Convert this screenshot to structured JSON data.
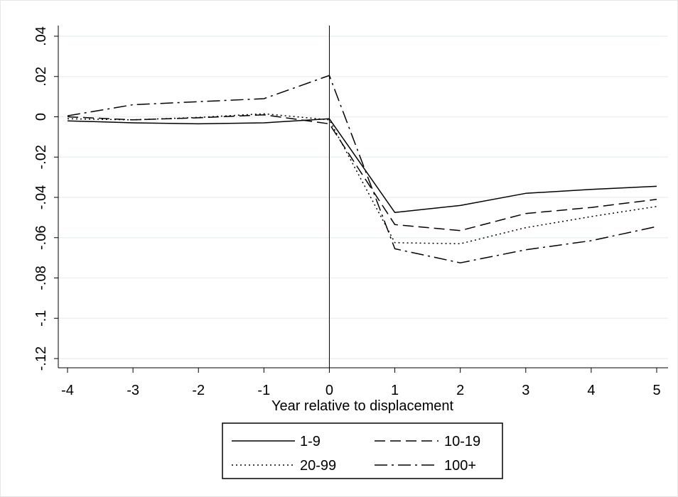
{
  "chart_data": {
    "type": "line",
    "title": "",
    "xlabel": "Year relative to displacement",
    "ylabel": "",
    "x": [
      -4,
      -3,
      -2,
      -1,
      0,
      1,
      2,
      3,
      4,
      5
    ],
    "xlim": [
      -4,
      5
    ],
    "ylim": [
      -0.12,
      0.04
    ],
    "x_ticks": [
      -4,
      -3,
      -2,
      -1,
      0,
      1,
      2,
      3,
      4,
      5
    ],
    "x_tick_labels": [
      "-4",
      "-3",
      "-2",
      "-1",
      "0",
      "1",
      "2",
      "3",
      "4",
      "5"
    ],
    "y_ticks": [
      0.04,
      0.02,
      0,
      -0.02,
      -0.04,
      -0.06,
      -0.08,
      -0.1,
      -0.12
    ],
    "y_tick_labels": [
      ".04",
      ".02",
      "0",
      "-.02",
      "-.04",
      "-.06",
      "-.08",
      "-.1",
      "-.12"
    ],
    "grid": "horizontal",
    "reference_line_x": 0,
    "legend_position": "bottom",
    "series": [
      {
        "name": "1-9",
        "dash": "solid",
        "values": [
          -0.002,
          -0.003,
          -0.0035,
          -0.003,
          -0.001,
          -0.0475,
          -0.044,
          -0.038,
          -0.036,
          -0.0345
        ]
      },
      {
        "name": "10-19",
        "dash": "dashed",
        "values": [
          0.0,
          -0.0015,
          -0.0005,
          0.001,
          -0.0035,
          -0.0535,
          -0.0565,
          -0.048,
          -0.045,
          -0.041
        ]
      },
      {
        "name": "20-99",
        "dash": "dotted",
        "values": [
          -0.001,
          -0.0015,
          -0.0003,
          0.0015,
          -0.0015,
          -0.0625,
          -0.063,
          -0.055,
          -0.0495,
          -0.0445
        ]
      },
      {
        "name": "100+",
        "dash": "dashdot",
        "values": [
          0.0005,
          0.006,
          0.0075,
          0.009,
          0.0205,
          -0.0655,
          -0.0725,
          -0.066,
          -0.0615,
          -0.0545
        ]
      }
    ]
  }
}
